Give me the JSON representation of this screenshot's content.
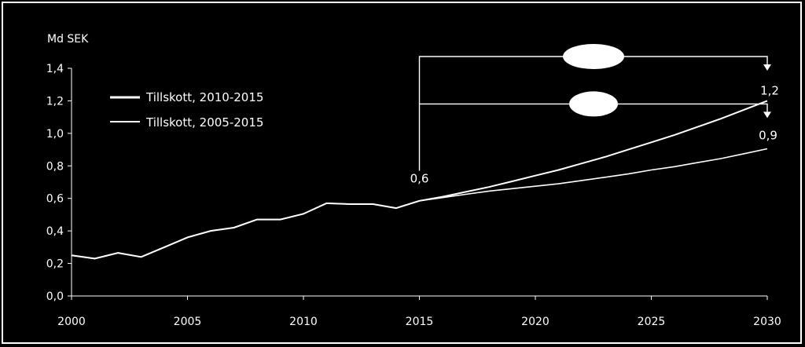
{
  "colors": {
    "background": "#000000",
    "foreground": "#ffffff",
    "frame": "#ffffff"
  },
  "chart_data": {
    "type": "line",
    "ylabel": "Md SEK",
    "ylim": [
      0.0,
      1.4
    ],
    "xlim": [
      2000,
      2030
    ],
    "y_ticks": [
      "0,0",
      "0,2",
      "0,4",
      "0,6",
      "0,8",
      "1,0",
      "1,2",
      "1,4"
    ],
    "x_ticks": [
      "2000",
      "2005",
      "2010",
      "2015",
      "2020",
      "2025",
      "2030"
    ],
    "grid": false,
    "legend_position": "top-left",
    "series": [
      {
        "name": "Tillskott, 2010-2015",
        "x": [
          2000,
          2001,
          2002,
          2003,
          2004,
          2005,
          2006,
          2007,
          2008,
          2009,
          2010,
          2011,
          2012,
          2013,
          2014,
          2015,
          2016,
          2017,
          2018,
          2019,
          2020,
          2021,
          2022,
          2023,
          2024,
          2025,
          2026,
          2027,
          2028,
          2029,
          2030
        ],
        "values": [
          0.25,
          0.23,
          0.265,
          0.24,
          0.3,
          0.36,
          0.4,
          0.42,
          0.47,
          0.47,
          0.505,
          0.57,
          0.565,
          0.565,
          0.54,
          0.585,
          0.61,
          0.64,
          0.67,
          0.705,
          0.74,
          0.775,
          0.815,
          0.855,
          0.9,
          0.945,
          0.99,
          1.04,
          1.09,
          1.145,
          1.2
        ]
      },
      {
        "name": "Tillskott, 2005-2015",
        "x": [
          2000,
          2001,
          2002,
          2003,
          2004,
          2005,
          2006,
          2007,
          2008,
          2009,
          2010,
          2011,
          2012,
          2013,
          2014,
          2015,
          2016,
          2017,
          2018,
          2019,
          2020,
          2021,
          2022,
          2023,
          2024,
          2025,
          2026,
          2027,
          2028,
          2029,
          2030
        ],
        "values": [
          0.25,
          0.23,
          0.265,
          0.24,
          0.3,
          0.36,
          0.4,
          0.42,
          0.47,
          0.47,
          0.505,
          0.57,
          0.565,
          0.565,
          0.54,
          0.585,
          0.605,
          0.625,
          0.645,
          0.66,
          0.675,
          0.69,
          0.71,
          0.73,
          0.75,
          0.775,
          0.795,
          0.82,
          0.845,
          0.875,
          0.905
        ]
      }
    ],
    "annotations": [
      {
        "text": "0,6",
        "x": 2015,
        "y": 0.6
      },
      {
        "text": "1,2",
        "x": 2030,
        "y": 1.2
      },
      {
        "text": "0,9",
        "x": 2030,
        "y": 0.9
      }
    ]
  }
}
